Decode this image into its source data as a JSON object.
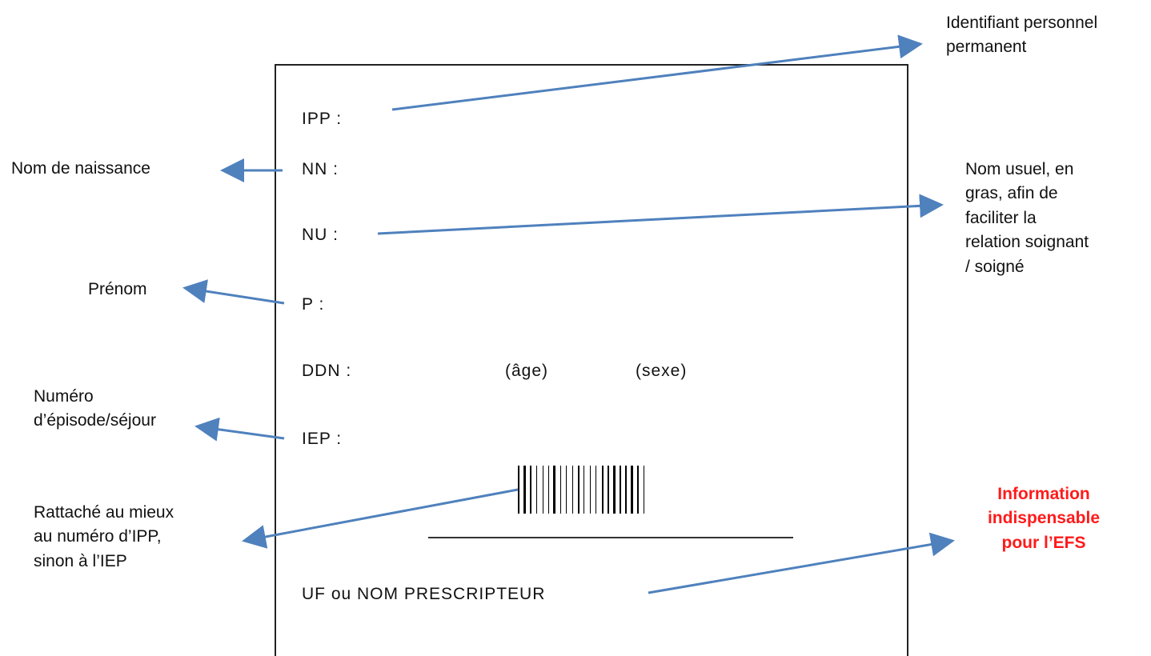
{
  "card": {
    "fields": {
      "ipp": "IPP :",
      "nn": "NN :",
      "nu": "NU :",
      "p": "P :",
      "ddn": "DDN :",
      "age": "(âge)",
      "sexe": "(sexe)",
      "iep": "IEP :",
      "uf": "UF ou NOM PRESCRIPTEUR"
    }
  },
  "notes": {
    "ipp_line1": "Identifiant personnel",
    "ipp_line2": "permanent",
    "nn": "Nom de naissance",
    "prenom": "Prénom",
    "nu_line1": "Nom usuel, en",
    "nu_line2": "gras, afin de",
    "nu_line3": "faciliter la",
    "nu_line4": "relation soignant",
    "nu_line5": "/ soigné",
    "iep_line1": "Numéro",
    "iep_line2": "d’épisode/séjour",
    "barcode_line1": "Rattaché au mieux",
    "barcode_line2": "au numéro d’IPP,",
    "barcode_line3": "sinon à l’IEP",
    "efs_line1": "Information",
    "efs_line2": "indispensable",
    "efs_line3": "pour l’EFS"
  },
  "colors": {
    "arrow": "#4f81bd",
    "important_text": "#ff1a1a"
  }
}
